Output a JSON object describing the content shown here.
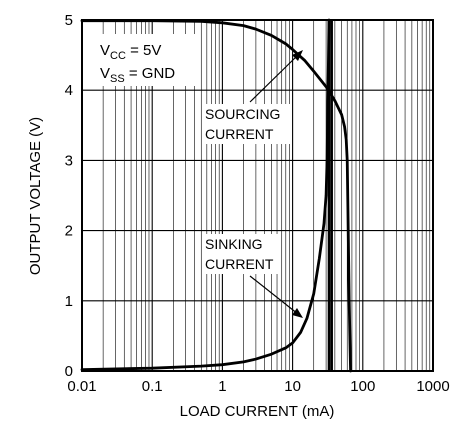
{
  "chart_data": {
    "type": "line",
    "xscale": "log",
    "xlim": [
      0.01,
      1000
    ],
    "ylim": [
      0,
      5
    ],
    "xlabel": "LOAD CURRENT (mA)",
    "ylabel": "OUTPUT VOLTAGE (V)",
    "x_tick_labels": [
      "0.01",
      "0.1",
      "1",
      "10",
      "100",
      "1000"
    ],
    "y_tick_labels": [
      "0",
      "1",
      "2",
      "3",
      "4",
      "5"
    ],
    "x_ticks": [
      0.01,
      0.1,
      1,
      10,
      100,
      1000
    ],
    "y_ticks": [
      0,
      1,
      2,
      3,
      4,
      5
    ],
    "grid": true,
    "conditions": {
      "vcc": {
        "base": "V",
        "sub": "CC",
        "rest": " = 5V"
      },
      "vss": {
        "base": "V",
        "sub": "SS",
        "rest": " = GND"
      }
    },
    "series": [
      {
        "annotation": [
          "SOURCING",
          "CURRENT"
        ],
        "points": [
          [
            0.01,
            4.99
          ],
          [
            0.1,
            4.99
          ],
          [
            0.5,
            4.98
          ],
          [
            1,
            4.96
          ],
          [
            2,
            4.92
          ],
          [
            3,
            4.87
          ],
          [
            5,
            4.78
          ],
          [
            8,
            4.66
          ],
          [
            10,
            4.58
          ],
          [
            15,
            4.42
          ],
          [
            20,
            4.27
          ],
          [
            30,
            4.05
          ],
          [
            40,
            3.85
          ],
          [
            50,
            3.65
          ],
          [
            55,
            3.48
          ],
          [
            58,
            3.3
          ],
          [
            60,
            3.0
          ],
          [
            62,
            2.0
          ],
          [
            64,
            1.0
          ],
          [
            66,
            0.3
          ],
          [
            67,
            0
          ]
        ]
      },
      {
        "annotation": [
          "SINKING",
          "CURRENT"
        ],
        "points": [
          [
            0.01,
            0.02
          ],
          [
            0.1,
            0.04
          ],
          [
            0.5,
            0.07
          ],
          [
            1,
            0.09
          ],
          [
            2,
            0.13
          ],
          [
            3,
            0.17
          ],
          [
            5,
            0.24
          ],
          [
            8,
            0.33
          ],
          [
            10,
            0.4
          ],
          [
            13,
            0.55
          ],
          [
            16,
            0.75
          ],
          [
            20,
            1.1
          ],
          [
            24,
            1.6
          ],
          [
            28,
            2.1
          ],
          [
            30,
            2.5
          ],
          [
            31,
            3.0
          ],
          [
            32,
            4.0
          ],
          [
            33,
            5.0
          ]
        ]
      }
    ],
    "vertical_markers": [
      {
        "x": 33
      },
      {
        "x": 36
      }
    ]
  }
}
